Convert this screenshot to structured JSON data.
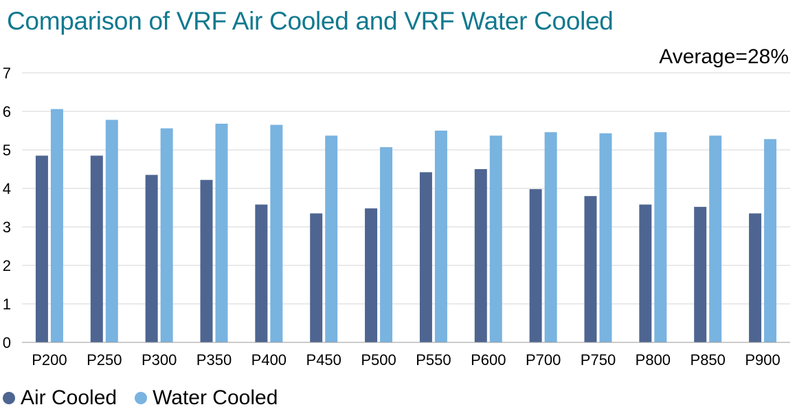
{
  "chart_data": {
    "type": "bar",
    "title": "Comparison of VRF Air Cooled and VRF Water Cooled",
    "annotation": "Average=28%",
    "categories": [
      "P200",
      "P250",
      "P300",
      "P350",
      "P400",
      "P450",
      "P500",
      "P550",
      "P600",
      "P700",
      "P750",
      "P800",
      "P850",
      "P900"
    ],
    "series": [
      {
        "name": "Air Cooled",
        "color": "#4e6591",
        "values": [
          4.85,
          4.85,
          4.35,
          4.22,
          3.58,
          3.35,
          3.48,
          4.42,
          4.5,
          3.98,
          3.8,
          3.58,
          3.52,
          3.35
        ]
      },
      {
        "name": "Water Cooled",
        "color": "#79b3e0",
        "values": [
          6.06,
          5.78,
          5.56,
          5.68,
          5.65,
          5.37,
          5.07,
          5.5,
          5.37,
          5.46,
          5.43,
          5.46,
          5.37,
          5.28
        ]
      }
    ],
    "ylim": [
      0,
      7
    ],
    "yticks": [
      0,
      1,
      2,
      3,
      4,
      5,
      6,
      7
    ],
    "grid": true,
    "legend": "bottom-left"
  }
}
